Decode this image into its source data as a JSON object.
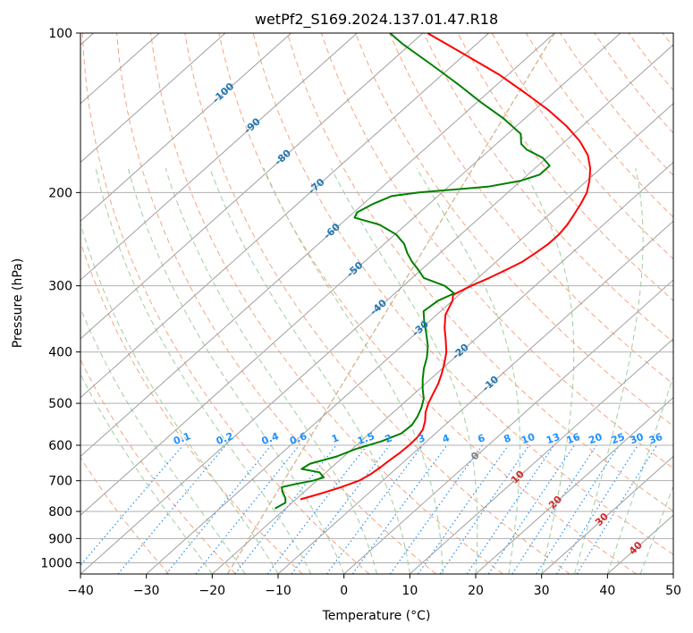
{
  "chart_data": {
    "type": "line",
    "subtype": "skew-t log-p sounding",
    "title": "wetPf2_S169.2024.137.01.47.R18",
    "xlabel": "Temperature (°C)",
    "ylabel": "Pressure (hPa)",
    "xlim": [
      -40,
      50
    ],
    "ylim": [
      1050,
      100
    ],
    "y_scale": "log (inverted)",
    "x_ticks": [
      -40,
      -30,
      -20,
      -10,
      0,
      10,
      20,
      30,
      40,
      50
    ],
    "y_ticks": [
      1000,
      900,
      800,
      700,
      600,
      500,
      400,
      300,
      200,
      100
    ],
    "grid": true,
    "series": [
      {
        "color": "#ff0000",
        "points": [
          [
            759,
            -19.3
          ],
          [
            740,
            -17.2
          ],
          [
            720,
            -15.2
          ],
          [
            700,
            -13.6
          ],
          [
            680,
            -12.9
          ],
          [
            660,
            -12.6
          ],
          [
            640,
            -12.4
          ],
          [
            620,
            -12.1
          ],
          [
            600,
            -12.0
          ],
          [
            580,
            -12.1
          ],
          [
            560,
            -12.6
          ],
          [
            540,
            -13.7
          ],
          [
            520,
            -15.1
          ],
          [
            500,
            -16.2
          ],
          [
            480,
            -17.1
          ],
          [
            460,
            -18.0
          ],
          [
            440,
            -19.2
          ],
          [
            420,
            -20.6
          ],
          [
            400,
            -22.2
          ],
          [
            380,
            -24.3
          ],
          [
            360,
            -26.6
          ],
          [
            340,
            -28.7
          ],
          [
            320,
            -30.0
          ],
          [
            312,
            -30.9
          ],
          [
            300,
            -29.7
          ],
          [
            290,
            -28.3
          ],
          [
            280,
            -27.1
          ],
          [
            270,
            -26.0
          ],
          [
            260,
            -25.5
          ],
          [
            250,
            -25.1
          ],
          [
            240,
            -25.1
          ],
          [
            230,
            -25.5
          ],
          [
            220,
            -26.2
          ],
          [
            210,
            -27.0
          ],
          [
            200,
            -28.0
          ],
          [
            190,
            -29.6
          ],
          [
            180,
            -31.6
          ],
          [
            170,
            -34.2
          ],
          [
            160,
            -37.8
          ],
          [
            150,
            -42.3
          ],
          [
            140,
            -47.7
          ],
          [
            130,
            -54.1
          ],
          [
            120,
            -61.2
          ],
          [
            110,
            -69.8
          ],
          [
            100,
            -79.3
          ]
        ]
      },
      {
        "color": "#008000",
        "points": [
          [
            790,
            -21.6
          ],
          [
            770,
            -21.0
          ],
          [
            755,
            -21.8
          ],
          [
            735,
            -23.3
          ],
          [
            720,
            -24.2
          ],
          [
            710,
            -22.6
          ],
          [
            700,
            -20.6
          ],
          [
            690,
            -19.5
          ],
          [
            675,
            -21.0
          ],
          [
            665,
            -24.3
          ],
          [
            650,
            -23.9
          ],
          [
            630,
            -21.1
          ],
          [
            610,
            -19.5
          ],
          [
            590,
            -16.9
          ],
          [
            570,
            -15.2
          ],
          [
            550,
            -15.0
          ],
          [
            530,
            -15.6
          ],
          [
            510,
            -16.5
          ],
          [
            490,
            -17.7
          ],
          [
            470,
            -19.5
          ],
          [
            450,
            -21.2
          ],
          [
            430,
            -22.8
          ],
          [
            410,
            -24.2
          ],
          [
            390,
            -26.0
          ],
          [
            370,
            -28.3
          ],
          [
            350,
            -30.8
          ],
          [
            335,
            -32.6
          ],
          [
            320,
            -32.2
          ],
          [
            310,
            -31.0
          ],
          [
            300,
            -33.7
          ],
          [
            290,
            -38.2
          ],
          [
            280,
            -40.4
          ],
          [
            270,
            -42.8
          ],
          [
            260,
            -45.0
          ],
          [
            250,
            -47.0
          ],
          [
            240,
            -49.8
          ],
          [
            230,
            -54.0
          ],
          [
            223,
            -59.0
          ],
          [
            218,
            -59.5
          ],
          [
            210,
            -58.5
          ],
          [
            203,
            -57.0
          ],
          [
            200,
            -53.5
          ],
          [
            195,
            -44.0
          ],
          [
            190,
            -40.0
          ],
          [
            185,
            -38.2
          ],
          [
            178,
            -38.2
          ],
          [
            172,
            -40.6
          ],
          [
            166,
            -44.4
          ],
          [
            162,
            -46.2
          ],
          [
            155,
            -48.0
          ],
          [
            145,
            -53.2
          ],
          [
            135,
            -59.5
          ],
          [
            125,
            -65.9
          ],
          [
            115,
            -73.1
          ],
          [
            105,
            -81.1
          ],
          [
            100,
            -85.0
          ]
        ]
      }
    ],
    "isotherm_labels": [
      "-100",
      "-90",
      "-80",
      "-70",
      "-60",
      "-50",
      "-40",
      "-30",
      "-20",
      "-10"
    ],
    "isotherm_label_color": "#1f77b4",
    "mixing_ratio_labels": [
      "0.1",
      "0.2",
      "0.4",
      "0.6",
      "1",
      "1.5",
      "2",
      "3",
      "4",
      "6",
      "8",
      "10",
      "13",
      "16",
      "20",
      "25",
      "30",
      "36"
    ],
    "mixing_ratio_label_color": "#1e90ff",
    "dry_adiabat_labels": [
      "0",
      "10",
      "20",
      "30",
      "40"
    ],
    "dry_adiabat_label_colors": [
      "#808080",
      "#d62728",
      "#d62728",
      "#d62728",
      "#d62728"
    ],
    "colors": {
      "isobar_grid": "#b0b0b0",
      "skewed_isotherms": "#a0a0a0",
      "dry_adiabats": "#f4a582",
      "moist_adiabats": "#9ecf9e",
      "mixing_ratio_lines": "#1e90ff",
      "condensation_curve": "#d2b48c"
    }
  }
}
